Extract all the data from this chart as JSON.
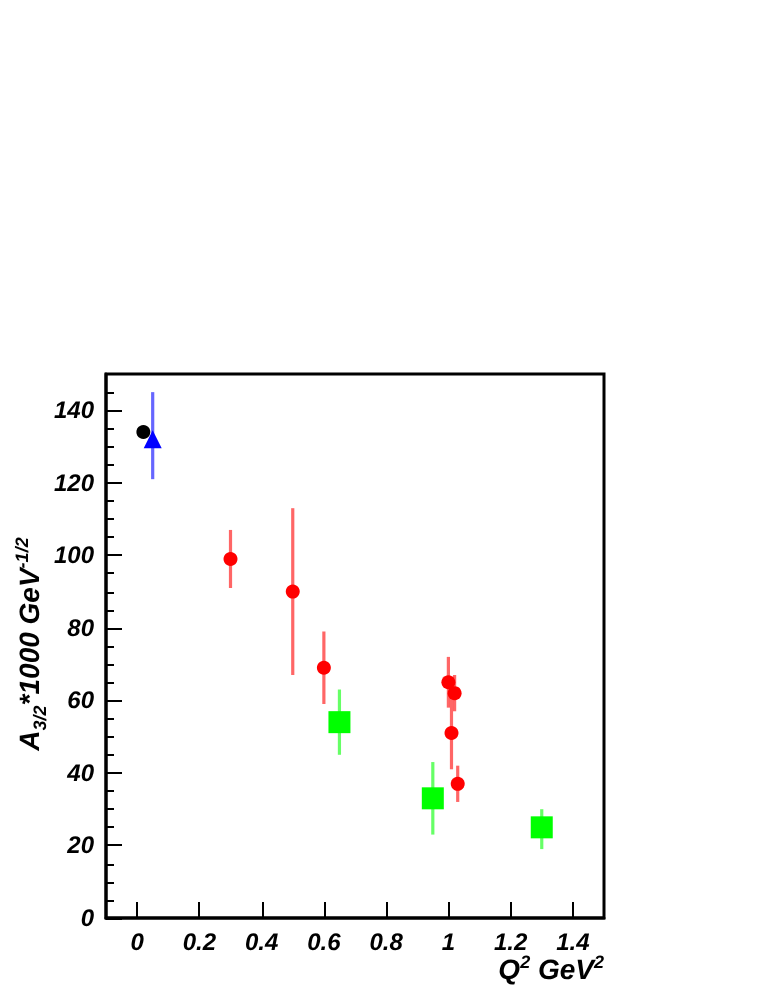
{
  "chart_data": {
    "type": "scatter",
    "xlabel": "Q$^{2}$ GeV$^{2}$",
    "ylabel": "A$_{3/2}$*1000 GeV$^{-1/2}$",
    "xlim": [
      -0.1,
      1.5
    ],
    "xticks": [
      0,
      0.2,
      0.4,
      0.6,
      0.8,
      1,
      1.2,
      1.4
    ],
    "ylim": [
      0,
      150
    ],
    "yticks": [
      0,
      20,
      40,
      60,
      80,
      100,
      120,
      140
    ],
    "grid": false,
    "series": [
      {
        "color": "#000000",
        "marker": "circle",
        "x": [
          0.02
        ],
        "values": [
          134
        ]
      },
      {
        "color": "#0000ff",
        "marker": "triangle",
        "x": [
          0.05
        ],
        "values": [
          132
        ],
        "errors": [
          [
            121,
            145
          ]
        ]
      },
      {
        "color": "#ff0000",
        "marker": "circle",
        "x": [
          0.3,
          0.5,
          0.6,
          1.0,
          1.01,
          1.02,
          1.03
        ],
        "values": [
          99,
          90,
          69,
          65,
          51,
          62,
          37
        ],
        "errors": [
          [
            91,
            107
          ],
          [
            67,
            113
          ],
          [
            59,
            79
          ],
          [
            58,
            72
          ],
          [
            41,
            61
          ],
          [
            57,
            67
          ],
          [
            32,
            42
          ]
        ]
      },
      {
        "color": "#00ff00",
        "marker": "square",
        "x": [
          0.65,
          0.95,
          1.3
        ],
        "values": [
          54,
          33,
          25
        ],
        "errors": [
          [
            45,
            63
          ],
          [
            23,
            43
          ],
          [
            19,
            30
          ]
        ]
      }
    ]
  }
}
